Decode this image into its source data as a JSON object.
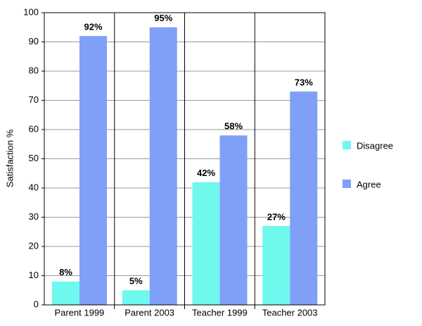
{
  "chart_data": {
    "type": "bar",
    "y_label": "Satisfaction %",
    "categories": [
      "Parent 1999",
      "Parent 2003",
      "Teacher 1999",
      "Teacher 2003"
    ],
    "series": [
      {
        "name": "Disagree",
        "color": "#6ff8ee",
        "values": [
          8,
          5,
          42,
          27
        ],
        "value_labels": [
          "8%",
          "5%",
          "42%",
          "27%"
        ]
      },
      {
        "name": "Agree",
        "color": "#80a0f8",
        "values": [
          92,
          95,
          58,
          73
        ],
        "value_labels": [
          "92%",
          "95%",
          "58%",
          "73%"
        ]
      }
    ],
    "ylim": [
      0,
      100
    ],
    "yticks": [
      0,
      10,
      20,
      30,
      40,
      50,
      60,
      70,
      80,
      90,
      100
    ],
    "grid": true,
    "legend": "right"
  }
}
